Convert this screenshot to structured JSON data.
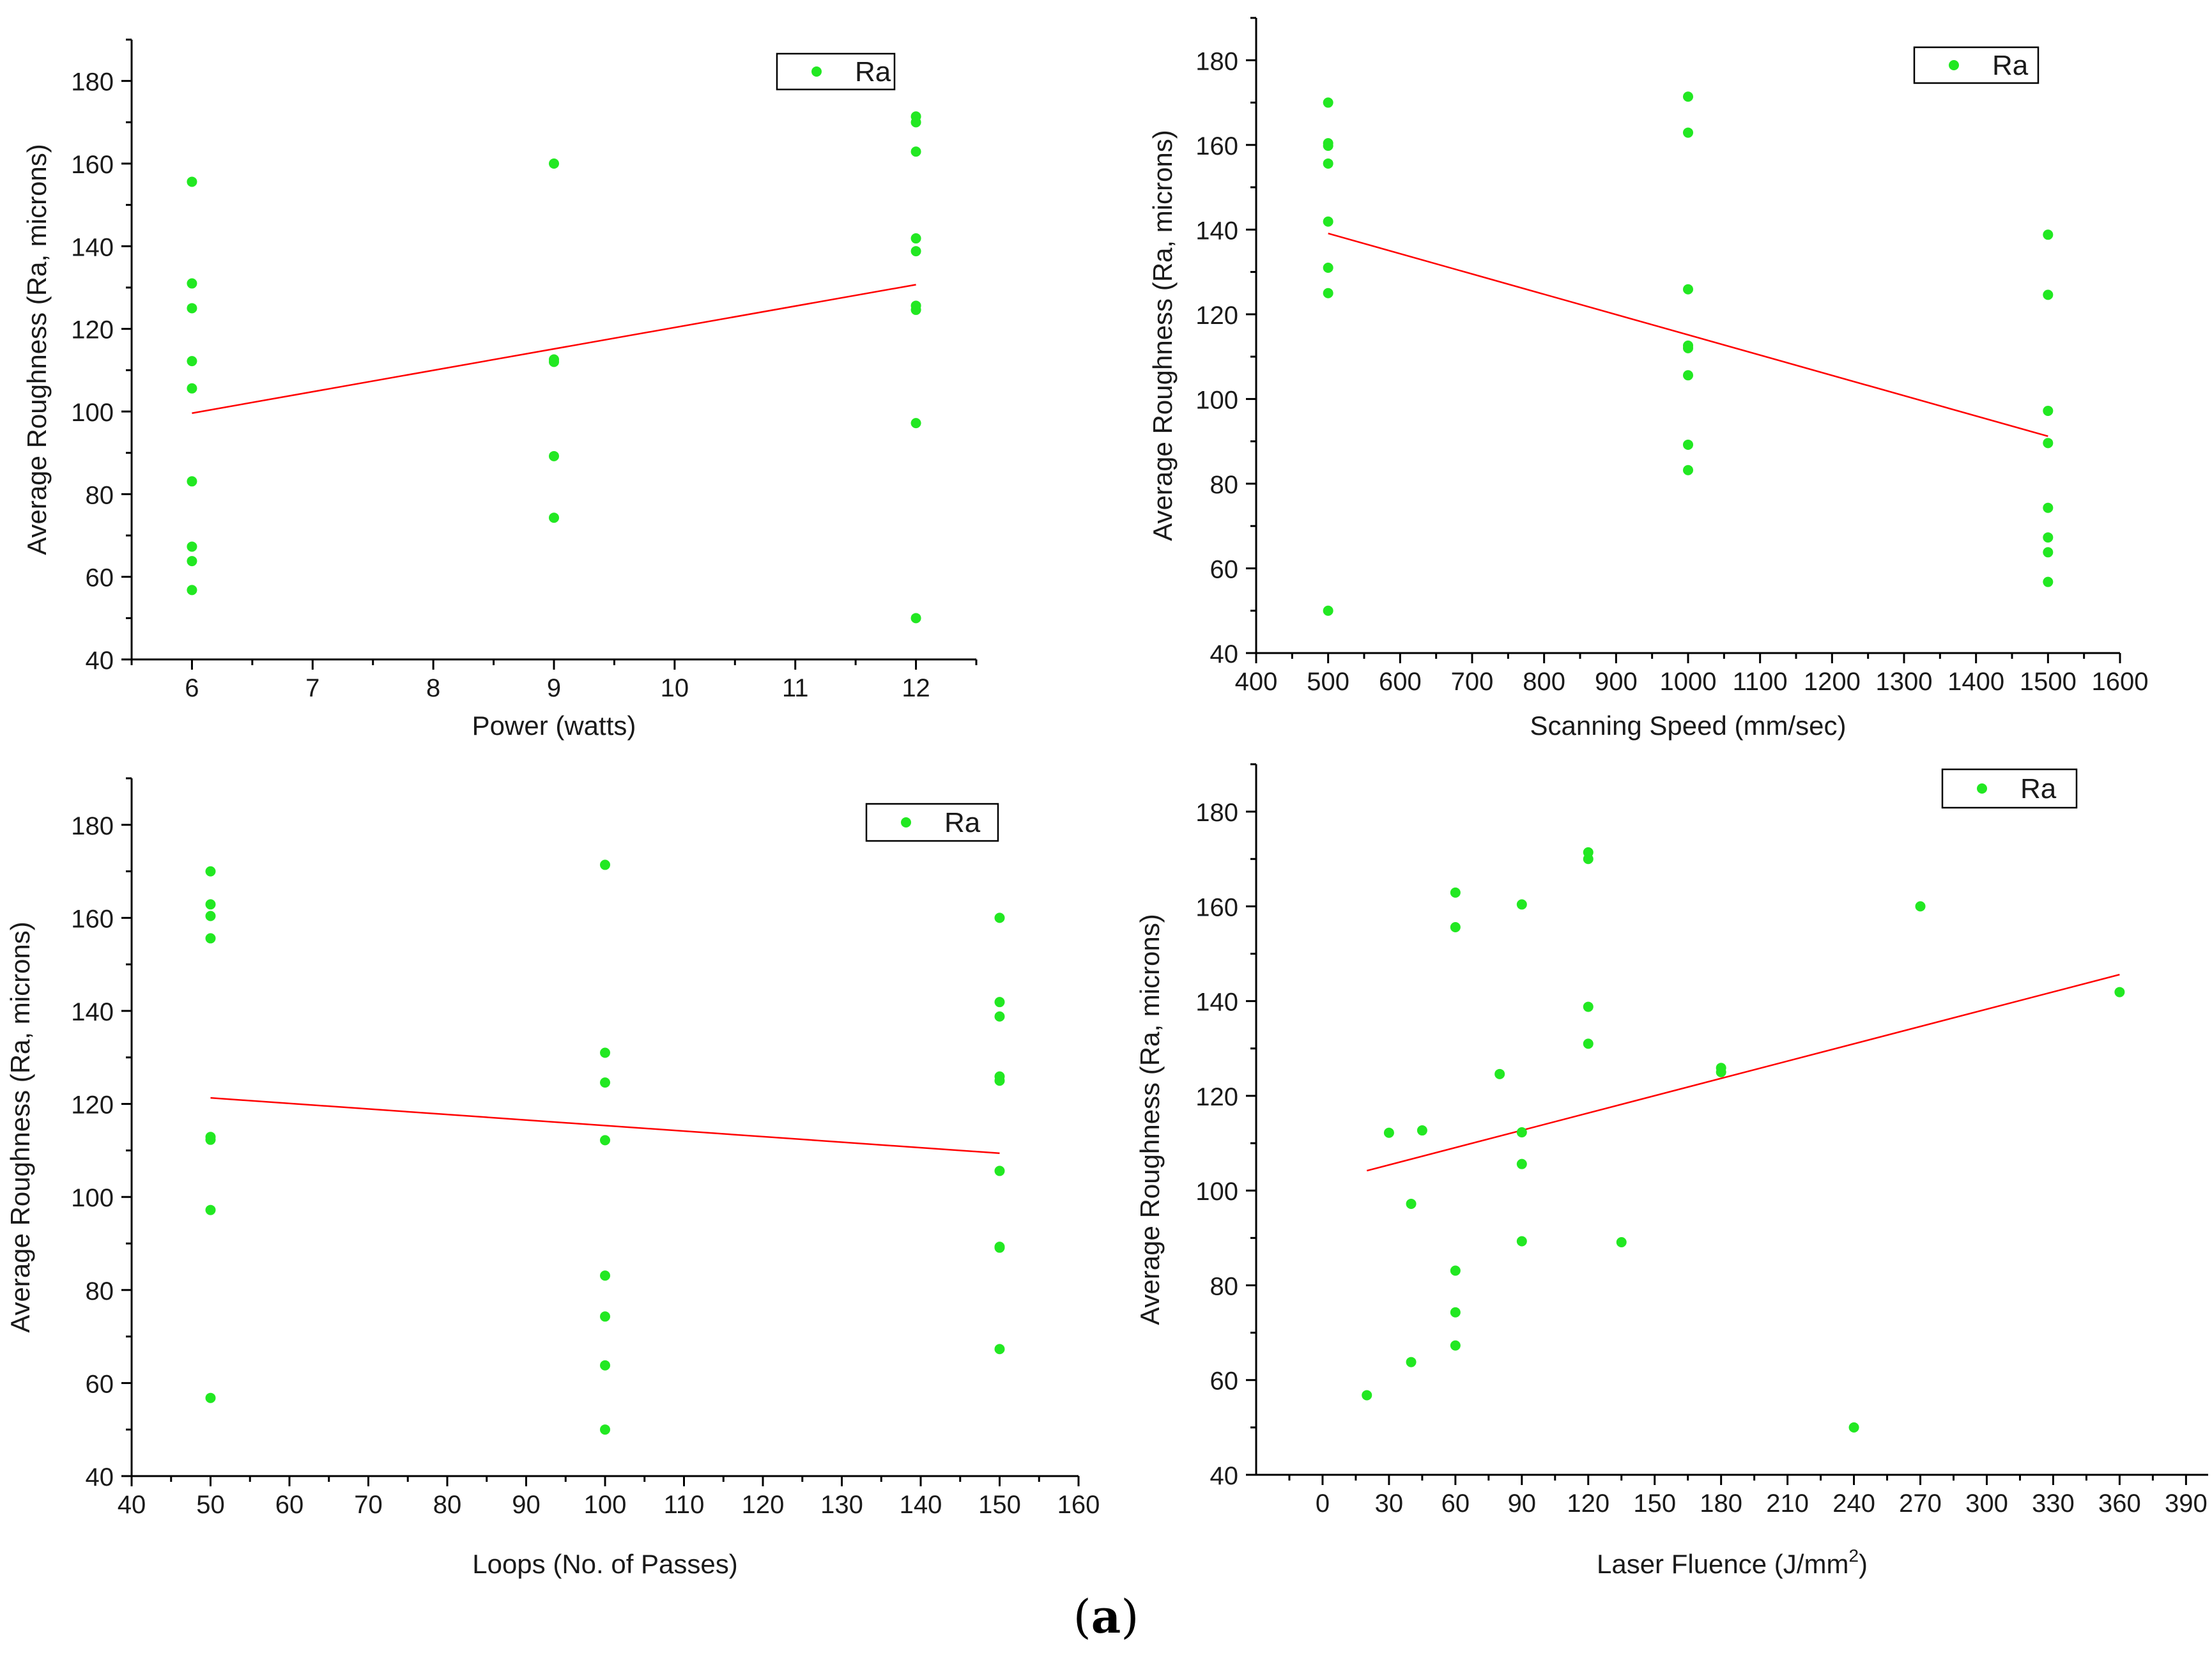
{
  "figure": {
    "caption_prefix": "(",
    "caption_letter": "a",
    "caption_suffix": ")"
  },
  "colors": {
    "points": "#22e822",
    "trend": "#ff0000",
    "axis": "#000000",
    "text": "#1a1a1a"
  },
  "chart_data": [
    {
      "type": "scatter",
      "id": "power",
      "xlabel": "Power (watts)",
      "ylabel": "Average Roughness (Ra, microns)",
      "xlim": [
        5.5,
        12.5
      ],
      "ylim": [
        40,
        190
      ],
      "xticks": [
        6,
        7,
        8,
        9,
        10,
        11,
        12
      ],
      "yticks": [
        40,
        60,
        80,
        100,
        120,
        140,
        160,
        180
      ],
      "legend": {
        "label": "Ra",
        "position": "top-right"
      },
      "series": [
        {
          "name": "Ra",
          "points": [
            [
              6,
              155.6
            ],
            [
              6,
              131
            ],
            [
              6,
              125
            ],
            [
              6,
              112.2
            ],
            [
              6,
              105.6
            ],
            [
              6,
              83.1
            ],
            [
              6,
              67.3
            ],
            [
              6,
              63.8
            ],
            [
              6,
              56.8
            ],
            [
              9,
              160
            ],
            [
              9,
              112.6
            ],
            [
              9,
              112
            ],
            [
              9,
              89.2
            ],
            [
              9,
              74.3
            ],
            [
              12,
              171.4
            ],
            [
              12,
              170
            ],
            [
              12,
              162.9
            ],
            [
              12,
              141.9
            ],
            [
              12,
              138.8
            ],
            [
              12,
              125.6
            ],
            [
              12,
              124.6
            ],
            [
              12,
              97.2
            ],
            [
              12,
              50
            ]
          ]
        }
      ],
      "trend": [
        [
          6,
          99.6
        ],
        [
          12,
          130.7
        ]
      ]
    },
    {
      "type": "scatter",
      "id": "speed",
      "xlabel": "Scanning Speed (mm/sec)",
      "ylabel": "Average Roughness (Ra, microns)",
      "xlim": [
        400,
        1600
      ],
      "ylim": [
        40,
        190
      ],
      "xticks": [
        400,
        500,
        600,
        700,
        800,
        900,
        1000,
        1100,
        1200,
        1300,
        1400,
        1500,
        1600
      ],
      "yticks": [
        40,
        60,
        80,
        100,
        120,
        140,
        160,
        180
      ],
      "legend": {
        "label": "Ra",
        "position": "top-right"
      },
      "series": [
        {
          "name": "Ra",
          "points": [
            [
              500,
              170
            ],
            [
              500,
              160.4
            ],
            [
              500,
              159.8
            ],
            [
              500,
              155.6
            ],
            [
              500,
              141.9
            ],
            [
              500,
              131
            ],
            [
              500,
              125
            ],
            [
              500,
              50
            ],
            [
              1000,
              171.4
            ],
            [
              1000,
              162.9
            ],
            [
              1000,
              125.9
            ],
            [
              1000,
              112.6
            ],
            [
              1000,
              112
            ],
            [
              1000,
              105.6
            ],
            [
              1000,
              89.2
            ],
            [
              1000,
              83.2
            ],
            [
              1500,
              138.8
            ],
            [
              1500,
              124.6
            ],
            [
              1500,
              97.2
            ],
            [
              1500,
              89.6
            ],
            [
              1500,
              74.3
            ],
            [
              1500,
              67.3
            ],
            [
              1500,
              63.8
            ],
            [
              1500,
              56.8
            ]
          ]
        }
      ],
      "trend": [
        [
          500,
          139.1
        ],
        [
          1500,
          91.2
        ]
      ]
    },
    {
      "type": "scatter",
      "id": "loops",
      "xlabel": "Loops (No. of Passes)",
      "ylabel": "Average Roughness (Ra, microns)",
      "xlim": [
        40,
        160
      ],
      "ylim": [
        40,
        190
      ],
      "xticks": [
        40,
        50,
        60,
        70,
        80,
        90,
        100,
        110,
        120,
        130,
        140,
        150,
        160
      ],
      "yticks": [
        40,
        60,
        80,
        100,
        120,
        140,
        160,
        180
      ],
      "legend": {
        "label": "Ra",
        "position": "top-right"
      },
      "series": [
        {
          "name": "Ra",
          "points": [
            [
              50,
              170
            ],
            [
              50,
              162.9
            ],
            [
              50,
              160.4
            ],
            [
              50,
              155.6
            ],
            [
              50,
              112.9
            ],
            [
              50,
              112.3
            ],
            [
              50,
              97.2
            ],
            [
              50,
              56.8
            ],
            [
              100,
              171.4
            ],
            [
              100,
              131
            ],
            [
              100,
              124.6
            ],
            [
              100,
              112.2
            ],
            [
              100,
              83.1
            ],
            [
              100,
              74.3
            ],
            [
              100,
              63.8
            ],
            [
              100,
              50
            ],
            [
              150,
              160
            ],
            [
              150,
              141.9
            ],
            [
              150,
              138.8
            ],
            [
              150,
              125.9
            ],
            [
              150,
              125
            ],
            [
              150,
              105.6
            ],
            [
              150,
              89.3
            ],
            [
              150,
              89.1
            ],
            [
              150,
              67.3
            ]
          ]
        }
      ],
      "trend": [
        [
          50,
          121.3
        ],
        [
          150,
          109.4
        ]
      ]
    },
    {
      "type": "scatter",
      "id": "fluence",
      "xlabel_main": "Laser Fluence (J/mm",
      "xlabel_sup": "2",
      "xlabel_close": ")",
      "ylabel": "Average Roughness (Ra, microns)",
      "xlim": [
        -30,
        400
      ],
      "ylim": [
        40,
        190
      ],
      "xticks": [
        0,
        30,
        60,
        90,
        120,
        150,
        180,
        210,
        240,
        270,
        300,
        330,
        360,
        390
      ],
      "yticks": [
        40,
        60,
        80,
        100,
        120,
        140,
        160,
        180
      ],
      "legend": {
        "label": "Ra",
        "position": "top-right"
      },
      "series": [
        {
          "name": "Ra",
          "points": [
            [
              20,
              56.8
            ],
            [
              30,
              112.2
            ],
            [
              40,
              97.2
            ],
            [
              40,
              63.8
            ],
            [
              45,
              112.7
            ],
            [
              60,
              162.9
            ],
            [
              60,
              155.6
            ],
            [
              60,
              83.1
            ],
            [
              60,
              74.3
            ],
            [
              60,
              67.3
            ],
            [
              80,
              124.6
            ],
            [
              90,
              160.4
            ],
            [
              90,
              112.3
            ],
            [
              90,
              105.6
            ],
            [
              90,
              89.3
            ],
            [
              120,
              171.4
            ],
            [
              120,
              170
            ],
            [
              120,
              138.8
            ],
            [
              120,
              131
            ],
            [
              135,
              89.1
            ],
            [
              180,
              125.9
            ],
            [
              180,
              125
            ],
            [
              240,
              50
            ],
            [
              270,
              160
            ],
            [
              360,
              141.9
            ]
          ]
        }
      ],
      "trend": [
        [
          20,
          104.2
        ],
        [
          360,
          145.6
        ]
      ]
    }
  ]
}
